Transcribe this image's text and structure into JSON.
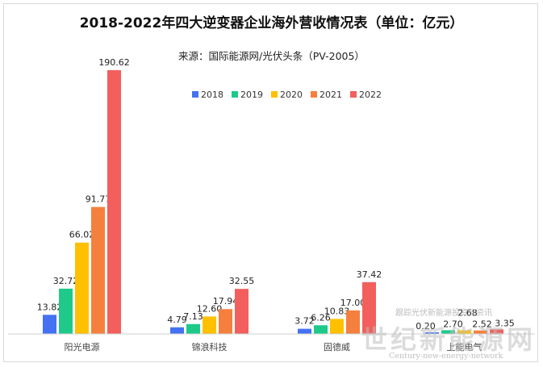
{
  "chart_data": {
    "type": "bar",
    "title": "2018-2022年四大逆变器企业海外营收情况表（单位：亿元）",
    "subtitle": "来源：国际能源网/光伏头条（PV-2005）",
    "categories": [
      "阳光电源",
      "锦浪科技",
      "固德威",
      "上能电气"
    ],
    "series": [
      {
        "name": "2018",
        "color": "#4472f2",
        "values": [
          13.82,
          4.79,
          3.72,
          0.2
        ],
        "labels": [
          "13.82",
          "4.79",
          "3.72",
          "0.20"
        ]
      },
      {
        "name": "2019",
        "color": "#1fc98a",
        "values": [
          32.72,
          7.13,
          6.26,
          2.7
        ],
        "labels": [
          "32.72",
          "7.13",
          "6.26",
          "2.70"
        ]
      },
      {
        "name": "2020",
        "color": "#ffc000",
        "values": [
          66.02,
          12.6,
          10.83,
          2.68
        ],
        "labels": [
          "66.02",
          "12.60",
          "10.83",
          "2.68"
        ]
      },
      {
        "name": "2021",
        "color": "#f5803e",
        "values": [
          91.77,
          17.94,
          17.0,
          2.52
        ],
        "labels": [
          "91.77",
          "17.94",
          "17.00",
          "2.52"
        ]
      },
      {
        "name": "2022",
        "color": "#f25f5c",
        "values": [
          190.62,
          32.55,
          37.42,
          3.35
        ],
        "labels": [
          "190.62",
          "32.55",
          "37.42",
          "3.35"
        ]
      }
    ],
    "ylim": [
      0,
      190.62
    ],
    "grid": false,
    "legend": "top-center"
  },
  "watermark": {
    "brand": "世纪新能源网",
    "english": "Century-new-energy-network",
    "tagline": "跟踪光伏新能源投资与资讯"
  }
}
